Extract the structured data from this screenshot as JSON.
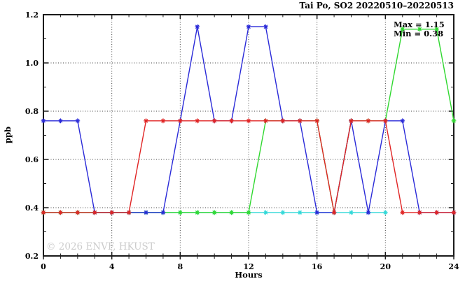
{
  "title": "Tai Po, SO2 20220510–20220513",
  "annotation": {
    "max_label": "Max = 1.15",
    "min_label": "Min = 0.38"
  },
  "watermark": "© 2026 ENVF, HKUST",
  "colors": {
    "blue": "#2a2ad8",
    "red": "#e02424",
    "green": "#30d830",
    "cyan": "#30d8d8",
    "grid": "#444444",
    "frame": "#1a1a1a",
    "watermark": "#cccccc"
  },
  "chart_data": {
    "type": "line",
    "title": "Tai Po, SO2 20220510–20220513",
    "xlabel": "Hours",
    "ylabel": "ppb",
    "xlim": [
      0,
      24
    ],
    "ylim": [
      0.2,
      1.2
    ],
    "x_tick_labels": [
      "0",
      "4",
      "8",
      "12",
      "16",
      "20",
      "24"
    ],
    "x_ticks_major": [
      0,
      4,
      8,
      12,
      16,
      20,
      24
    ],
    "x_ticks_minor_step": 1,
    "y_tick_labels": [
      "0.2",
      "0.4",
      "0.6",
      "0.8",
      "1.0",
      "1.2"
    ],
    "y_ticks_major": [
      0.2,
      0.4,
      0.6,
      0.8,
      1.0,
      1.2
    ],
    "y_ticks_minor_step": 0.1,
    "grid": "dotted",
    "legend_position": "none",
    "marker": "asterisk",
    "max": 1.15,
    "min": 0.38,
    "series": [
      {
        "name": "cyan",
        "color_key": "cyan",
        "x_start": 0,
        "x_step": 1,
        "values": [
          0.38,
          0.38,
          0.38,
          0.38,
          0.38,
          0.38,
          0.38,
          0.38,
          0.38,
          0.38,
          0.38,
          0.38,
          0.38,
          0.38,
          0.38,
          0.38,
          0.38,
          0.38,
          0.38,
          0.38,
          0.38
        ]
      },
      {
        "name": "green",
        "color_key": "green",
        "x_start": 0,
        "x_step": 1,
        "values": [
          0.38,
          0.38,
          0.38,
          0.38,
          0.38,
          0.38,
          0.38,
          0.38,
          0.38,
          0.38,
          0.38,
          0.38,
          0.38,
          0.76,
          0.76,
          0.76,
          0.76,
          0.38,
          0.76,
          0.76,
          0.76,
          1.14,
          1.14,
          1.14,
          0.76
        ]
      },
      {
        "name": "blue",
        "color_key": "blue",
        "x_start": 0,
        "x_step": 1,
        "values": [
          0.76,
          0.76,
          0.76,
          0.38,
          0.38,
          0.38,
          0.38,
          0.38,
          0.76,
          1.15,
          0.76,
          0.76,
          1.15,
          1.15,
          0.76,
          0.76,
          0.38,
          0.38,
          0.76,
          0.38,
          0.76,
          0.76,
          0.38,
          0.38,
          0.38
        ]
      },
      {
        "name": "red",
        "color_key": "red",
        "x_start": 0,
        "x_step": 1,
        "values": [
          0.38,
          0.38,
          0.38,
          0.38,
          0.38,
          0.38,
          0.76,
          0.76,
          0.76,
          0.76,
          0.76,
          0.76,
          0.76,
          0.76,
          0.76,
          0.76,
          0.76,
          0.38,
          0.76,
          0.76,
          0.76,
          0.38,
          0.38,
          0.38,
          0.38
        ]
      }
    ]
  }
}
